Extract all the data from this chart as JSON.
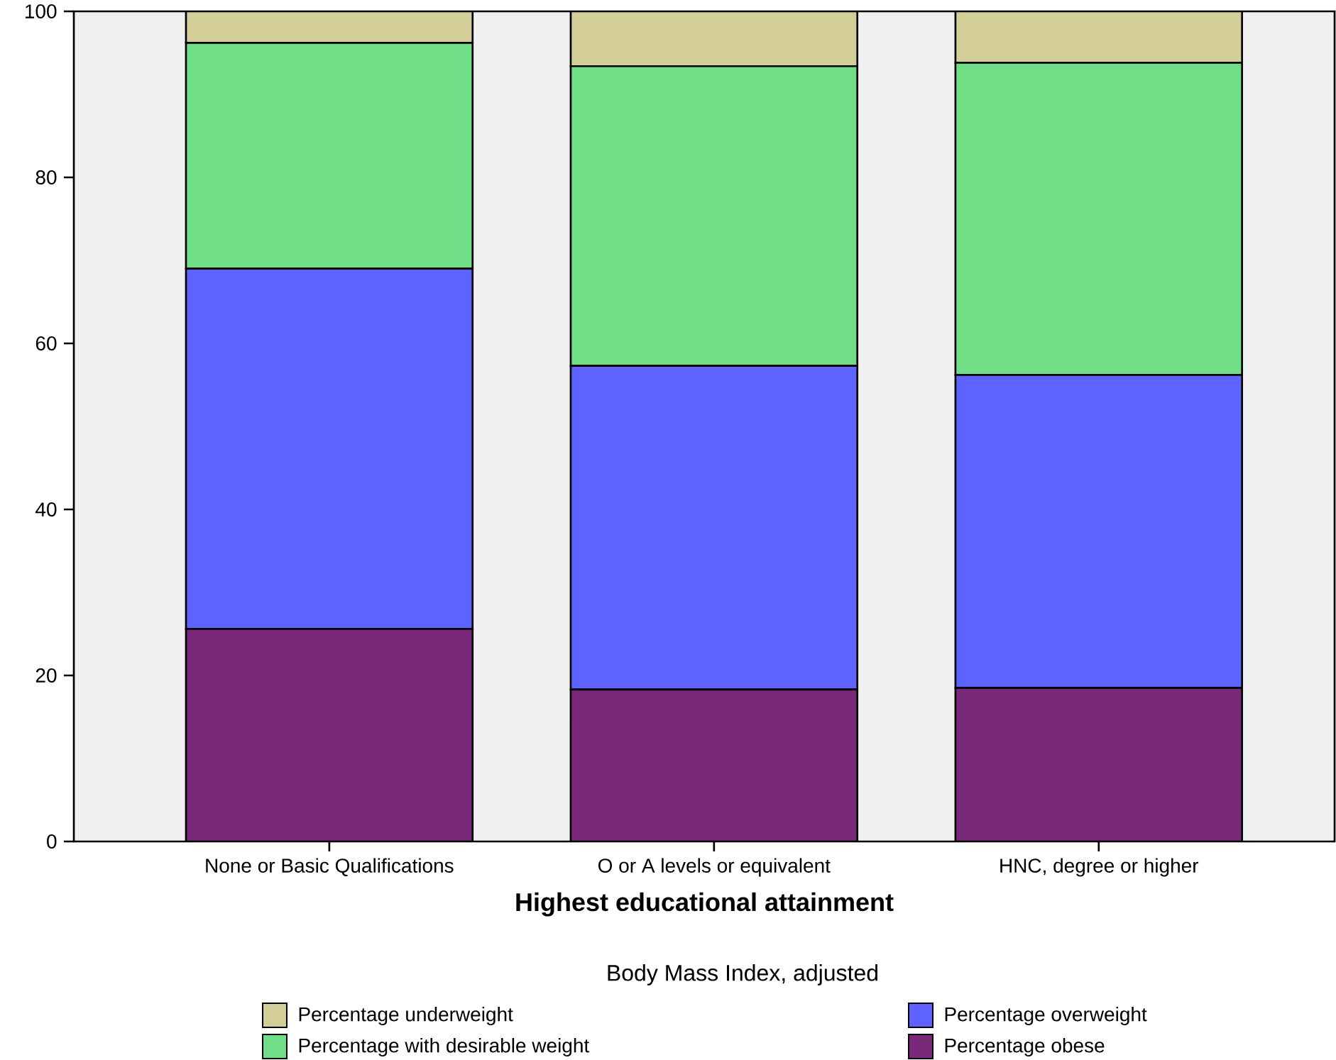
{
  "chart_data": {
    "type": "bar",
    "stacked": true,
    "xlabel": "Highest educational attainment",
    "legend_title": "Body Mass Index, adjusted",
    "legend": "bottom",
    "categories": [
      "None or Basic Qualifications",
      "O or A levels or equivalent",
      "HNC, degree or higher"
    ],
    "ylim": [
      0,
      100
    ],
    "yticks": [
      0,
      20,
      40,
      60,
      80,
      100
    ],
    "grid": false,
    "series": [
      {
        "name": "Percentage obese",
        "color": "#7a287a",
        "values": [
          25.6,
          18.3,
          18.5
        ]
      },
      {
        "name": "Percentage overweight",
        "color": "#5e63ff",
        "values": [
          43.4,
          39.0,
          37.7
        ]
      },
      {
        "name": "Percentage with desirable weight",
        "color": "#70dd87",
        "values": [
          27.2,
          36.1,
          37.6
        ]
      },
      {
        "name": "Percentage underweight",
        "color": "#d3ce98",
        "values": [
          3.8,
          6.6,
          6.2
        ]
      }
    ]
  }
}
